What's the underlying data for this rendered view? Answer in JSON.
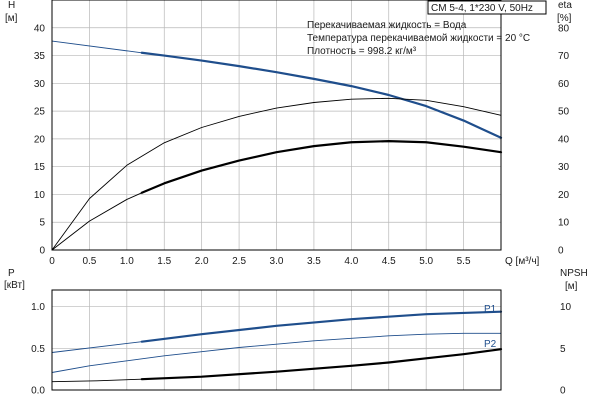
{
  "chart_data": [
    {
      "type": "line",
      "title": "CM 5-4, 1*230 V, 50Hz",
      "info_lines": [
        "Перекачиваемая жидкость = Вода",
        "Температура перекачиваемой жидкости = 20 °C",
        "Плотность = 998.2 кг/м³"
      ],
      "xlabel": "Q [м³/ч]",
      "ylabel_left": [
        "H",
        "[м]"
      ],
      "ylabel_right": [
        "eta",
        "[%]"
      ],
      "xlim": [
        0,
        6
      ],
      "ylim_left": [
        0,
        45
      ],
      "ylim_right": [
        0,
        90
      ],
      "x_ticks": [
        "0",
        "0.5",
        "1.0",
        "1.5",
        "2.0",
        "2.5",
        "3.0",
        "3.5",
        "4.0",
        "4.5",
        "5.0",
        "5.5"
      ],
      "y_ticks_left": [
        "0",
        "5",
        "10",
        "15",
        "20",
        "25",
        "30",
        "35",
        "40"
      ],
      "y_ticks_right": [
        "0",
        "10",
        "20",
        "30",
        "40",
        "50",
        "60",
        "70",
        "80"
      ],
      "grid": true,
      "colors": {
        "head": "#1f4e8c",
        "eta": "#000000",
        "grid": "#b8b8b8"
      },
      "series": [
        {
          "axis": "left",
          "style": "thin",
          "x": [
            0,
            1.2
          ],
          "values": [
            37.6,
            35.5
          ]
        },
        {
          "axis": "left",
          "style": "thick",
          "x": [
            1.2,
            1.5,
            2.0,
            2.5,
            3.0,
            3.5,
            4.0,
            4.5,
            5.0,
            5.5,
            6.0
          ],
          "values": [
            35.5,
            35.0,
            34.1,
            33.1,
            32.0,
            30.8,
            29.5,
            27.9,
            25.9,
            23.3,
            20.2
          ]
        },
        {
          "axis": "right",
          "style": "thin",
          "x": [
            0,
            0.5,
            1.0,
            1.5,
            2.0,
            2.5,
            3.0,
            3.5,
            4.0,
            4.5,
            5.0,
            5.5,
            6.0
          ],
          "values": [
            0,
            18.5,
            30.5,
            38.6,
            44.1,
            48.1,
            51.1,
            53.1,
            54.3,
            54.6,
            53.9,
            51.6,
            48.5
          ]
        },
        {
          "axis": "left",
          "style": "thin",
          "x": [
            0,
            0.5,
            1.0,
            1.2
          ],
          "values": [
            0,
            5.2,
            9.1,
            10.3
          ]
        },
        {
          "axis": "left",
          "style": "thick",
          "x": [
            1.2,
            1.5,
            2.0,
            2.5,
            3.0,
            3.5,
            4.0,
            4.5,
            5.0,
            5.5,
            6.0
          ],
          "values": [
            10.3,
            12.0,
            14.3,
            16.1,
            17.6,
            18.7,
            19.4,
            19.6,
            19.4,
            18.6,
            17.6
          ]
        }
      ]
    },
    {
      "type": "line",
      "ylabel_left": [
        "P",
        "[кВт]"
      ],
      "ylabel_right": [
        "NPSH",
        "[м]"
      ],
      "xlim": [
        0,
        6
      ],
      "ylim_left": [
        0,
        1.2
      ],
      "ylim_right": [
        0,
        12
      ],
      "y_ticks_left": [
        "0.0",
        "0.5",
        "1.0"
      ],
      "y_ticks_right": [
        "0",
        "5",
        "10"
      ],
      "grid": true,
      "colors": {
        "power": "#1f4e8c",
        "npsh": "#000000"
      },
      "series": [
        {
          "name": "P1",
          "axis": "left",
          "style": "thin",
          "x": [
            0,
            1.2
          ],
          "values": [
            0.45,
            0.58
          ]
        },
        {
          "name": "P1",
          "axis": "left",
          "style": "thick",
          "x": [
            1.2,
            2.0,
            3.0,
            4.0,
            5.0,
            6.0
          ],
          "values": [
            0.58,
            0.67,
            0.77,
            0.85,
            0.91,
            0.94
          ]
        },
        {
          "name": "P2",
          "axis": "left",
          "style": "thin",
          "x": [
            0,
            0.5,
            1.0,
            1.5,
            2.0,
            2.5,
            3.0,
            3.5,
            4.0,
            4.5,
            5.0,
            5.5,
            6.0
          ],
          "values": [
            0.21,
            0.29,
            0.35,
            0.41,
            0.46,
            0.51,
            0.55,
            0.59,
            0.62,
            0.65,
            0.67,
            0.68,
            0.68
          ]
        },
        {
          "axis": "right",
          "style": "thin",
          "x": [
            0,
            0.6,
            1.2
          ],
          "values": [
            1.0,
            1.1,
            1.3
          ]
        },
        {
          "axis": "right",
          "style": "thick",
          "x": [
            1.2,
            2.0,
            3.0,
            4.0,
            4.5,
            5.0,
            5.5,
            6.0
          ],
          "values": [
            1.3,
            1.6,
            2.2,
            2.9,
            3.3,
            3.8,
            4.3,
            4.9
          ]
        }
      ],
      "labels": [
        "P1",
        "P2"
      ]
    }
  ]
}
